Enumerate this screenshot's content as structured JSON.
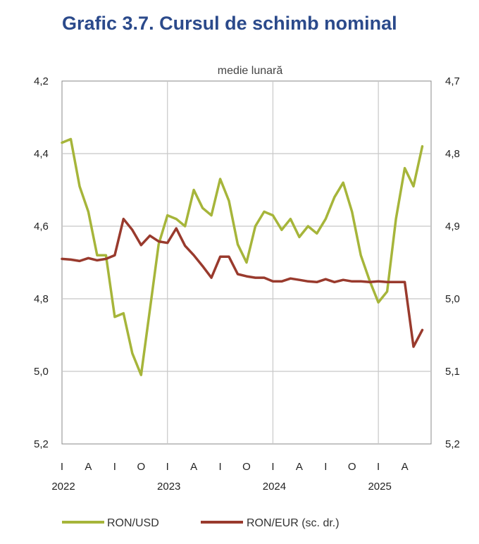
{
  "chart_data": {
    "type": "line",
    "title": "Grafic 3.7. Cursul de schimb nominal",
    "subtitle": "medie lunară",
    "x_ticks": [
      "I",
      "A",
      "I",
      "O",
      "I",
      "A",
      "I",
      "O",
      "I",
      "A",
      "I",
      "O",
      "I",
      "A"
    ],
    "years": [
      "2022",
      "2023",
      "2024",
      "2025"
    ],
    "y_left": {
      "ticks": [
        "4,2",
        "4,4",
        "4,6",
        "4,8",
        "5,0",
        "5,2"
      ],
      "range": [
        4.2,
        5.2
      ],
      "inverted": true
    },
    "y_right": {
      "ticks": [
        "4,7",
        "4,8",
        "4,9",
        "5,0",
        "5,1",
        "5,2"
      ],
      "range": [
        4.7,
        5.2
      ],
      "inverted": true
    },
    "series": [
      {
        "name": "RON/USD",
        "axis": "left",
        "color": "#a6b53a",
        "values": [
          4.37,
          4.36,
          4.49,
          4.56,
          4.68,
          4.68,
          4.85,
          4.84,
          4.95,
          5.01,
          4.83,
          4.65,
          4.57,
          4.58,
          4.6,
          4.5,
          4.55,
          4.57,
          4.47,
          4.53,
          4.65,
          4.7,
          4.6,
          4.56,
          4.57,
          4.61,
          4.58,
          4.63,
          4.6,
          4.62,
          4.58,
          4.52,
          4.48,
          4.56,
          4.68,
          4.75,
          4.81,
          4.78,
          4.58,
          4.44,
          4.49,
          4.38
        ]
      },
      {
        "name": "RON/EUR (sc. dr.)",
        "axis": "right",
        "color": "#993a2d",
        "values": [
          4.945,
          4.946,
          4.948,
          4.944,
          4.947,
          4.945,
          4.94,
          4.89,
          4.905,
          4.926,
          4.913,
          4.921,
          4.923,
          4.903,
          4.927,
          4.94,
          4.955,
          4.971,
          4.942,
          4.942,
          4.966,
          4.969,
          4.971,
          4.971,
          4.976,
          4.976,
          4.972,
          4.974,
          4.976,
          4.977,
          4.973,
          4.977,
          4.974,
          4.976,
          4.976,
          4.977,
          4.976,
          4.977,
          4.977,
          4.977,
          5.066,
          5.043
        ]
      }
    ]
  }
}
